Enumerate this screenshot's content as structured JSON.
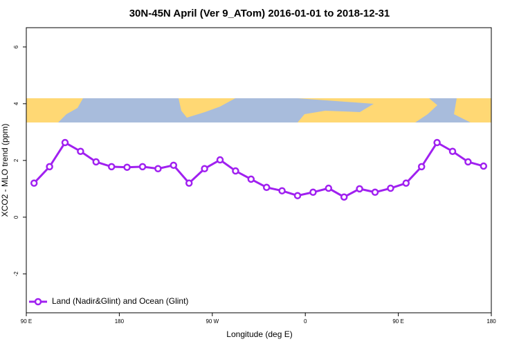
{
  "chart_data": {
    "type": "line",
    "title": "30N-45N April (Ver 9_ATom)   2016-01-01 to 2018-12-31",
    "x_label": "Longitude (deg E)",
    "y_label": "XCO2 - MLO trend (ppm)",
    "xlim": [
      90,
      540
    ],
    "xticks": [
      {
        "value": 90,
        "label": "90 E"
      },
      180,
      {
        "value": 270,
        "label": "90 W"
      },
      {
        "value": 360,
        "label": "0"
      },
      {
        "value": 450,
        "label": "90 E"
      },
      {
        "value": 540,
        "label": "180"
      }
    ],
    "ylim": [
      -3.37,
      6.68
    ],
    "yticks": [
      -2,
      0,
      2,
      4,
      6
    ],
    "legend": "bottom-left",
    "x": [
      97.5,
      112.5,
      127.5,
      142.5,
      157.5,
      172.5,
      187.5,
      202.5,
      217.5,
      232.5,
      247.5,
      262.5,
      277.5,
      292.5,
      307.5,
      322.5,
      337.5,
      352.5,
      367.5,
      382.5,
      397.5,
      412.5,
      427.5,
      442.5,
      457.5,
      472.5,
      487.5,
      502.5,
      517.5,
      532.5
    ],
    "series": [
      {
        "name": "Land (Nadir&Glint) and Ocean (Glint)",
        "color": "#a020f0",
        "values": [
          1.2,
          1.78,
          2.63,
          2.32,
          1.95,
          1.78,
          1.76,
          1.78,
          1.71,
          1.83,
          1.2,
          1.71,
          2.02,
          1.63,
          1.34,
          1.05,
          0.93,
          0.76,
          0.88,
          1.02,
          0.71,
          1.0,
          0.88,
          1.02,
          1.2,
          1.78,
          2.63,
          2.32,
          1.95,
          1.8
        ]
      }
    ]
  }
}
